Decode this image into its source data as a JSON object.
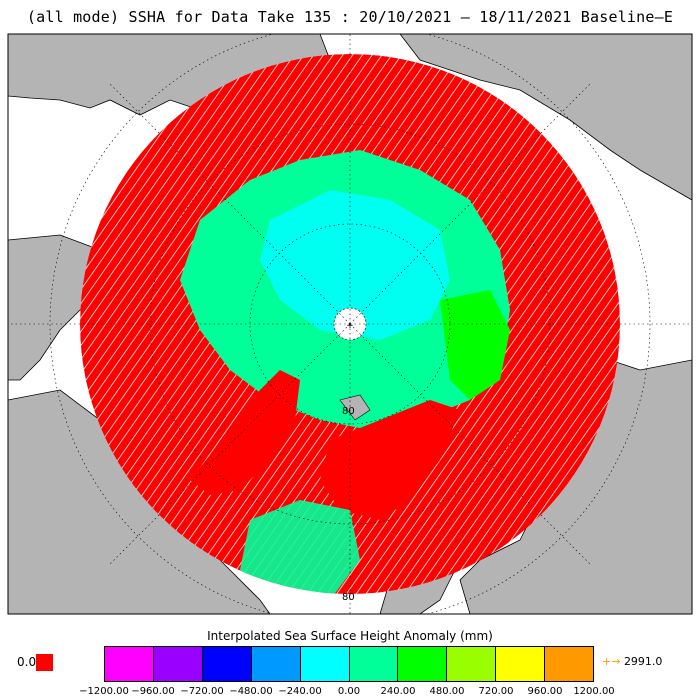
{
  "title": "(all mode) SSHA for Data Take 135 : 20/10/2021 — 18/11/2021 Baseline—E",
  "map": {
    "projection": "north-polar-stereographic",
    "land_color": "#b4b4b4",
    "ocean_color": "#ffffff",
    "coverage_edge_color": "#ff0000",
    "latitude_labels": [
      "80",
      "80"
    ]
  },
  "colorbar": {
    "title": "Interpolated Sea Surface Height Anomaly (mm)",
    "colors": [
      "#ff00ff",
      "#9900ff",
      "#0000ff",
      "#0099ff",
      "#00ffff",
      "#00ff99",
      "#00ff00",
      "#99ff00",
      "#ffff00",
      "#ff9900"
    ],
    "ticks": [
      "−1200.00",
      "−960.00",
      "−720.00",
      "−480.00",
      "−240.00",
      "0.00",
      "240.00",
      "480.00",
      "720.00",
      "960.00",
      "1200.00"
    ],
    "under_label": "0.0",
    "under_color": "#ff0000",
    "over_arrow": "+→",
    "over_label": "2991.0",
    "over_color": "#ff9900"
  }
}
